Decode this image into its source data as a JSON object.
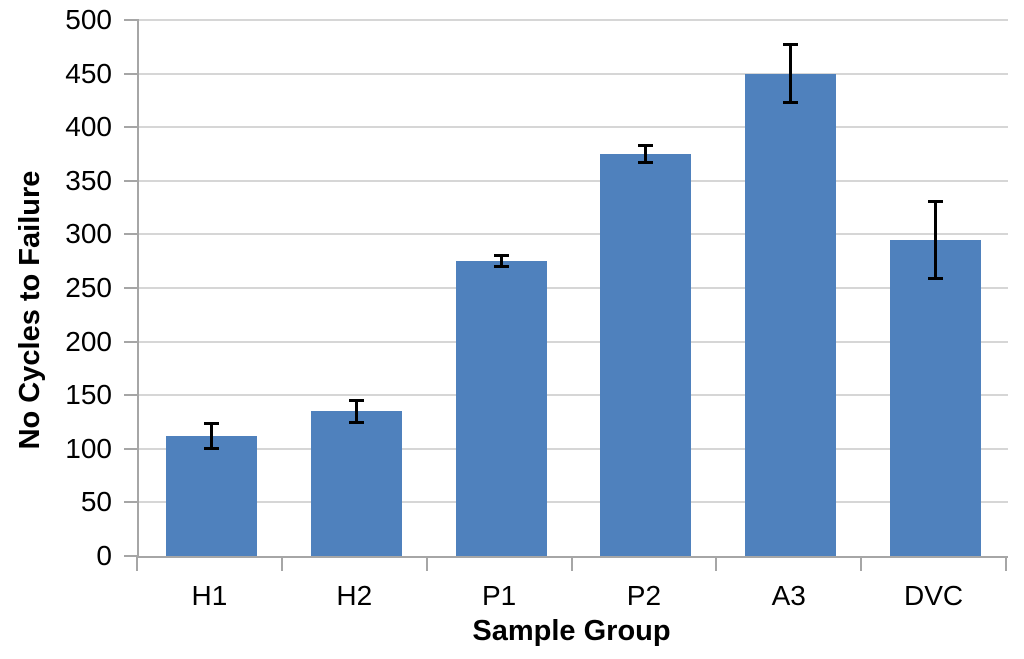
{
  "chart_data": {
    "type": "bar",
    "categories": [
      "H1",
      "H2",
      "P1",
      "P2",
      "A3",
      "DVC"
    ],
    "values": [
      112,
      135,
      275,
      375,
      450,
      295
    ],
    "errors": [
      12,
      10,
      5,
      8,
      27,
      36
    ],
    "xlabel": "Sample Group",
    "ylabel": "No Cycles to Failure",
    "ylim": [
      0,
      500
    ],
    "yticks": [
      0,
      50,
      100,
      150,
      200,
      250,
      300,
      350,
      400,
      450,
      500
    ],
    "grid": true,
    "legend_position": "none",
    "colors": {
      "bar": "#4F81BD",
      "gridline": "#D6D6D6",
      "axis": "#A6A6A6",
      "error": "#000000",
      "text": "#000000"
    }
  }
}
